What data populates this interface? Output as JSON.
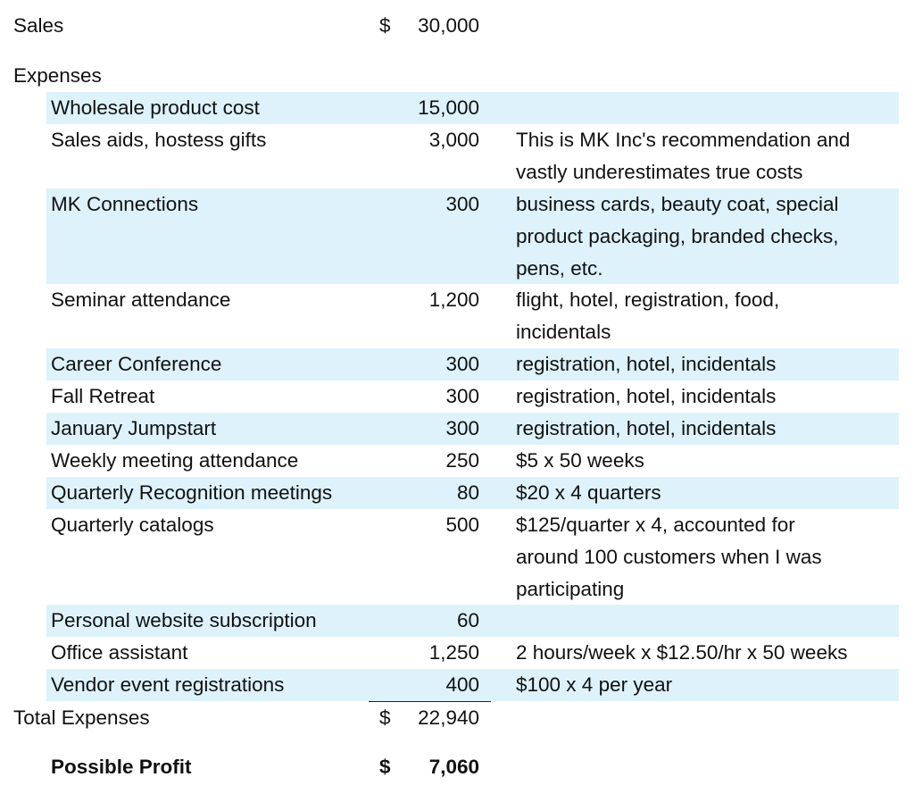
{
  "sales": {
    "label": "Sales",
    "currency": "$",
    "amount": "30,000"
  },
  "expenses_heading": "Expenses",
  "expenses": [
    {
      "label": "Wholesale product cost",
      "amount": "15,000",
      "note": []
    },
    {
      "label": "Sales aids, hostess gifts",
      "amount": "3,000",
      "note": [
        "This is MK Inc's recommendation and",
        "vastly underestimates true costs"
      ]
    },
    {
      "label": "MK Connections",
      "amount": "300",
      "note": [
        "business cards, beauty coat, special",
        "product packaging, branded checks,",
        "pens, etc."
      ]
    },
    {
      "label": "Seminar attendance",
      "amount": "1,200",
      "note": [
        "flight, hotel, registration, food,",
        "incidentals"
      ]
    },
    {
      "label": "Career Conference",
      "amount": "300",
      "note": [
        "registration, hotel, incidentals"
      ]
    },
    {
      "label": "Fall Retreat",
      "amount": "300",
      "note": [
        "registration, hotel, incidentals"
      ]
    },
    {
      "label": "January Jumpstart",
      "amount": "300",
      "note": [
        "registration, hotel, incidentals"
      ]
    },
    {
      "label": "Weekly meeting attendance",
      "amount": "250",
      "note": [
        "$5 x 50 weeks"
      ]
    },
    {
      "label": "Quarterly Recognition meetings",
      "amount": "80",
      "note": [
        "$20 x 4 quarters"
      ]
    },
    {
      "label": "Quarterly catalogs",
      "amount": "500",
      "note": [
        "$125/quarter x 4, accounted for",
        "around 100 customers when I was",
        "participating"
      ]
    },
    {
      "label": "Personal website subscription",
      "amount": "60",
      "note": []
    },
    {
      "label": "Office assistant",
      "amount": "1,250",
      "note": [
        "2 hours/week x $12.50/hr x 50 weeks"
      ]
    },
    {
      "label": "Vendor event registrations",
      "amount": "400",
      "note": [
        "$100 x 4 per year"
      ]
    }
  ],
  "total_expenses": {
    "label": "Total Expenses",
    "currency": "$",
    "amount": "22,940"
  },
  "profit": {
    "label": "Possible Profit",
    "currency": "$",
    "amount": "7,060"
  }
}
